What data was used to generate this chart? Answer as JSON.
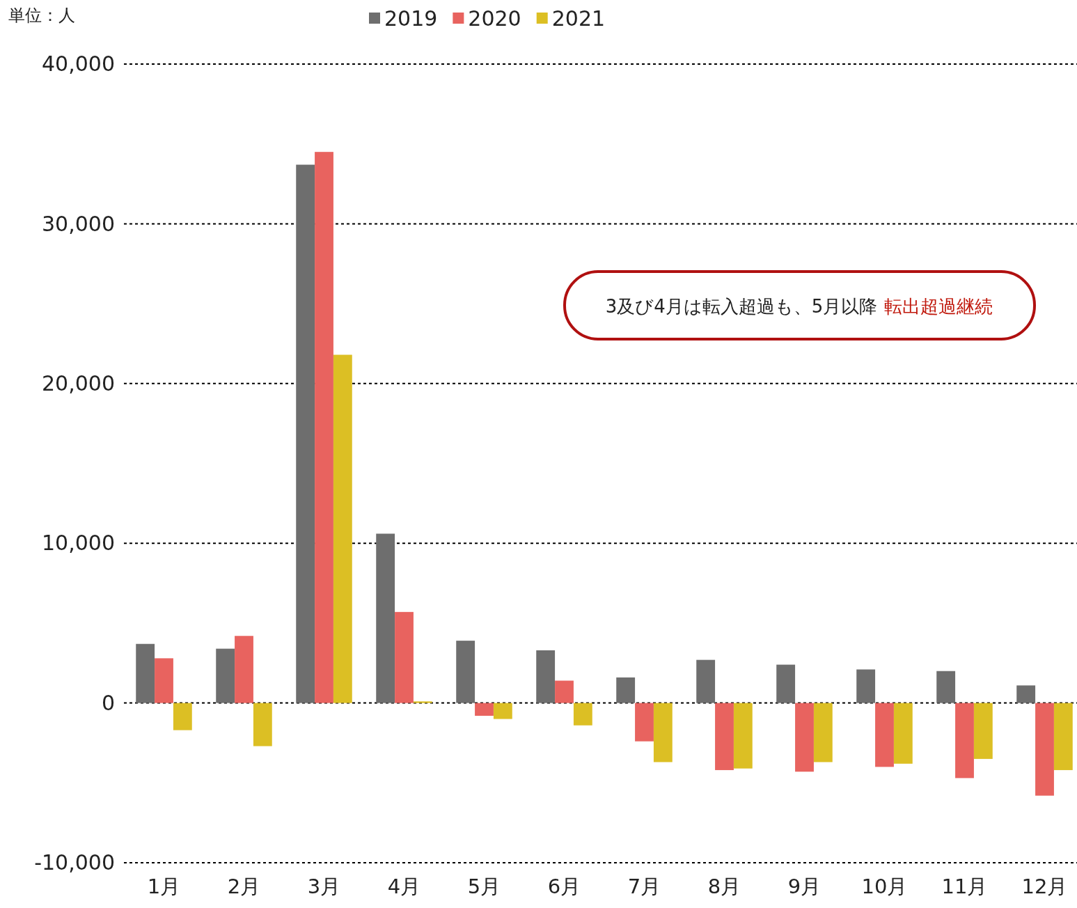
{
  "chart_data": {
    "type": "bar",
    "categories": [
      "1月",
      "2月",
      "3月",
      "4月",
      "5月",
      "6月",
      "7月",
      "8月",
      "9月",
      "10月",
      "11月",
      "12月"
    ],
    "series": [
      {
        "name": "2019",
        "color": "#6e6e6e",
        "values": [
          3700,
          3400,
          33700,
          10600,
          3900,
          3300,
          1600,
          2700,
          2400,
          2100,
          2000,
          1100
        ]
      },
      {
        "name": "2020",
        "color": "#e8635f",
        "values": [
          2800,
          4200,
          34500,
          5700,
          -800,
          1400,
          -2400,
          -4200,
          -4300,
          -4000,
          -4700,
          -5800
        ]
      },
      {
        "name": "2021",
        "color": "#dcbf24",
        "values": [
          -1700,
          -2700,
          21800,
          100,
          -1000,
          -1400,
          -3700,
          -4100,
          -3700,
          -3800,
          -3500,
          -4200
        ]
      }
    ],
    "ylim": [
      -10000,
      40000
    ],
    "yticks": [
      {
        "value": -10000,
        "label": "-10,000"
      },
      0,
      {
        "value": 10000,
        "label": "10,000"
      },
      {
        "value": 20000,
        "label": "20,000"
      },
      {
        "value": 30000,
        "label": "30,000"
      },
      {
        "value": 40000,
        "label": "40,000"
      }
    ],
    "grid": "y",
    "legend": "top",
    "annotations": [
      "単位：人",
      "3及び4月は転入超過も、5月以降",
      "転出超過継続"
    ]
  }
}
